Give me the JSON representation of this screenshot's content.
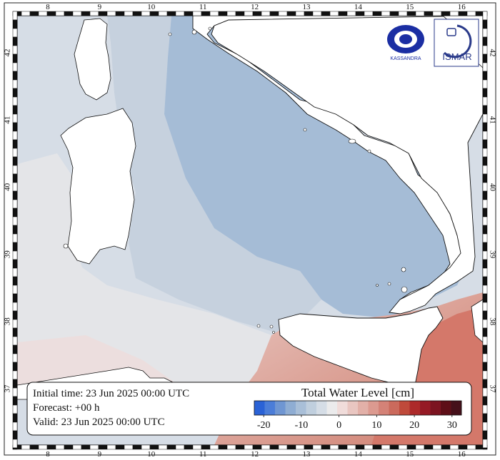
{
  "map": {
    "longitudes": [
      "8",
      "9",
      "10",
      "11",
      "12",
      "13",
      "14",
      "15",
      "16"
    ],
    "latitudes": [
      "37",
      "38",
      "39",
      "40",
      "41",
      "42"
    ]
  },
  "info": {
    "initial_time": "Initial time: 23 Jun 2025 00:00 UTC",
    "forecast": "Forecast: +00 h",
    "valid": "Valid: 23 Jun 2025 00:00 UTC"
  },
  "colorbar": {
    "title": "Total Water Level [cm]",
    "ticks": [
      "-20",
      "-10",
      "0",
      "10",
      "20",
      "30"
    ],
    "colors": [
      "#2a62d6",
      "#4b7dd8",
      "#6f96d2",
      "#8fadd3",
      "#a9bfd8",
      "#c0cfde",
      "#d5dde6",
      "#ebebec",
      "#f0dcda",
      "#e9c6c1",
      "#e2b0a8",
      "#dc9a90",
      "#d48277",
      "#cb6a5c",
      "#bf4a3b",
      "#ad2a2a",
      "#951a25",
      "#7c1420",
      "#5e0f18",
      "#45101a"
    ]
  },
  "logos": {
    "kassandra": "KASSANDRA",
    "ismar": "ISMAR"
  }
}
